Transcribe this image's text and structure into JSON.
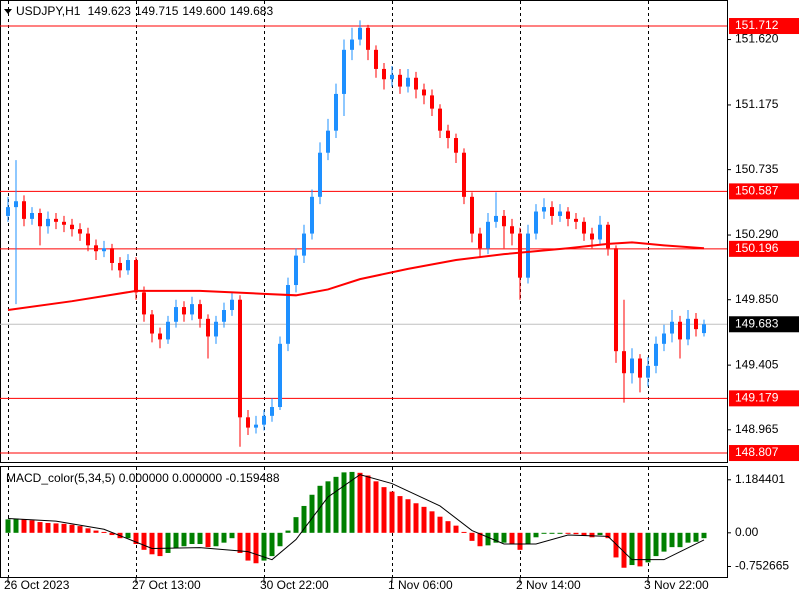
{
  "chart_data": [
    {
      "type": "candlestick",
      "title": "USDJPY,H1",
      "last_bar_labels": [
        "149.623",
        "149.715",
        "149.600",
        "149.683"
      ],
      "open": [
        150.42,
        150.48,
        150.52,
        150.4,
        150.44,
        150.35,
        150.4,
        150.38,
        150.36,
        150.33,
        150.3,
        150.22,
        150.18,
        150.2,
        150.1,
        150.05,
        150.12,
        149.9,
        149.75,
        149.62,
        149.58,
        149.7,
        149.8,
        149.75,
        149.82,
        149.72,
        149.6,
        149.7,
        149.78,
        149.85,
        149.05,
        148.98,
        149.0,
        149.06,
        149.12,
        149.55,
        149.95,
        150.15,
        150.3,
        150.55,
        150.85,
        151.0,
        151.25,
        151.55,
        151.62,
        151.7,
        151.55,
        151.42,
        151.35,
        151.38,
        151.3,
        151.36,
        151.28,
        151.24,
        151.15,
        151.0,
        150.95,
        150.85,
        150.55,
        150.3,
        150.2,
        150.38,
        150.42,
        150.35,
        150.3,
        150.0,
        150.3,
        150.45,
        150.48,
        150.42,
        150.45,
        150.4,
        150.38,
        150.3,
        150.26,
        150.36,
        150.2,
        149.5,
        149.35,
        149.45,
        149.32,
        149.4,
        149.55,
        149.62,
        149.7,
        149.58,
        149.72,
        149.623
      ],
      "high": [
        150.55,
        150.8,
        150.56,
        150.48,
        150.47,
        150.45,
        150.44,
        150.42,
        150.4,
        150.37,
        150.34,
        150.26,
        150.25,
        150.23,
        150.14,
        150.16,
        150.14,
        149.94,
        149.78,
        149.66,
        149.74,
        149.85,
        149.84,
        149.87,
        149.85,
        149.75,
        149.74,
        149.83,
        149.9,
        149.88,
        149.1,
        149.06,
        149.1,
        149.18,
        149.6,
        150.0,
        150.2,
        150.36,
        150.6,
        150.92,
        151.08,
        151.32,
        151.62,
        151.7,
        151.75,
        151.72,
        151.58,
        151.46,
        151.44,
        151.42,
        151.42,
        151.4,
        151.32,
        151.28,
        151.18,
        151.04,
        150.98,
        150.88,
        150.58,
        150.34,
        150.44,
        150.58,
        150.46,
        150.4,
        150.34,
        150.36,
        150.5,
        150.54,
        150.52,
        150.5,
        150.48,
        150.44,
        150.41,
        150.34,
        150.42,
        150.38,
        150.22,
        149.85,
        149.52,
        149.48,
        149.46,
        149.6,
        149.68,
        149.78,
        149.74,
        149.78,
        149.76,
        149.715
      ],
      "low": [
        150.38,
        149.82,
        150.35,
        150.36,
        150.22,
        150.3,
        150.33,
        150.31,
        150.28,
        150.25,
        150.18,
        150.12,
        150.14,
        150.05,
        150.0,
        150.02,
        149.85,
        149.7,
        149.56,
        149.52,
        149.55,
        149.66,
        149.7,
        149.71,
        149.66,
        149.45,
        149.55,
        149.66,
        149.74,
        148.85,
        148.93,
        148.94,
        148.96,
        149.02,
        149.1,
        149.5,
        149.9,
        150.1,
        150.26,
        150.5,
        150.8,
        150.95,
        151.1,
        151.48,
        151.58,
        151.48,
        151.36,
        151.28,
        151.3,
        151.25,
        151.26,
        151.22,
        151.18,
        151.1,
        150.95,
        150.88,
        150.78,
        150.5,
        150.24,
        150.14,
        150.16,
        150.34,
        150.2,
        150.22,
        149.85,
        149.96,
        150.26,
        150.4,
        150.36,
        150.38,
        150.35,
        150.33,
        150.25,
        150.2,
        150.22,
        150.15,
        149.42,
        149.15,
        149.28,
        149.22,
        149.26,
        149.35,
        149.5,
        149.56,
        149.45,
        149.54,
        149.6,
        149.6
      ],
      "close": [
        150.48,
        150.52,
        150.4,
        150.44,
        150.35,
        150.4,
        150.38,
        150.36,
        150.33,
        150.3,
        150.22,
        150.18,
        150.2,
        150.1,
        150.05,
        150.12,
        149.9,
        149.75,
        149.62,
        149.58,
        149.7,
        149.8,
        149.75,
        149.82,
        149.72,
        149.6,
        149.7,
        149.78,
        149.85,
        149.05,
        148.98,
        149.0,
        149.06,
        149.12,
        149.55,
        149.95,
        150.15,
        150.3,
        150.55,
        150.85,
        151.0,
        151.25,
        151.55,
        151.62,
        151.7,
        151.55,
        151.42,
        151.35,
        151.38,
        151.3,
        151.36,
        151.28,
        151.24,
        151.15,
        151.0,
        150.95,
        150.85,
        150.55,
        150.3,
        150.2,
        150.38,
        150.42,
        150.35,
        150.3,
        150.0,
        150.3,
        150.45,
        150.48,
        150.42,
        150.45,
        150.4,
        150.38,
        150.3,
        150.26,
        150.36,
        150.2,
        149.5,
        149.35,
        149.45,
        149.32,
        149.4,
        149.55,
        149.62,
        149.7,
        149.58,
        149.72,
        149.65,
        149.683
      ],
      "up_color": "#1e90ff",
      "down_color": "#ff0000",
      "ma": {
        "x": [
          0,
          8,
          16,
          24,
          32,
          36,
          40,
          44,
          50,
          56,
          62,
          70,
          75,
          78,
          82,
          87
        ],
        "values": [
          149.78,
          149.84,
          149.91,
          149.91,
          149.89,
          149.88,
          149.92,
          149.99,
          150.06,
          150.12,
          150.16,
          150.2,
          150.23,
          150.24,
          150.22,
          150.2
        ],
        "color": "#ff0000"
      },
      "levels": {
        "values": [
          151.712,
          150.587,
          150.196,
          149.179,
          148.807
        ],
        "color": "#ff0000"
      },
      "price_line_color": "#c0c0c0",
      "ylim": [
        148.746,
        151.889
      ],
      "yticks": [
        {
          "value": 151.62,
          "label": "151.620"
        },
        151.175,
        150.735,
        {
          "value": 150.29,
          "label": "150.290"
        },
        {
          "value": 149.85,
          "label": "149.850"
        },
        149.405,
        148.965
      ],
      "xticks": [
        {
          "value": 0,
          "label": "26 Oct 2023"
        },
        {
          "value": 16,
          "label": "27 Oct 13:00"
        },
        {
          "value": 32,
          "label": "30 Oct 22:00"
        },
        {
          "value": 48,
          "label": "1 Nov 06:00"
        },
        {
          "value": 64,
          "label": "2 Nov 14:00"
        },
        {
          "value": 80,
          "label": "3 Nov 22:00"
        }
      ],
      "grid": true
    },
    {
      "type": "macd",
      "title": "MACD_color(5,34,5) 0.000000 0.000000 -0.159488",
      "values": [
        0.3,
        0.32,
        0.3,
        0.28,
        0.24,
        0.22,
        0.21,
        0.2,
        0.18,
        0.15,
        0.1,
        0.05,
        0.02,
        -0.05,
        -0.12,
        -0.12,
        -0.25,
        -0.38,
        -0.48,
        -0.52,
        -0.45,
        -0.35,
        -0.3,
        -0.25,
        -0.25,
        -0.32,
        -0.3,
        -0.22,
        -0.12,
        -0.45,
        -0.62,
        -0.68,
        -0.62,
        -0.52,
        -0.3,
        0.05,
        0.35,
        0.6,
        0.85,
        1.05,
        1.15,
        1.25,
        1.35,
        1.36,
        1.34,
        1.28,
        1.15,
        1.02,
        0.92,
        0.82,
        0.75,
        0.66,
        0.58,
        0.48,
        0.36,
        0.26,
        0.16,
        0.02,
        -0.18,
        -0.3,
        -0.28,
        -0.22,
        -0.22,
        -0.24,
        -0.38,
        -0.25,
        -0.1,
        -0.02,
        -0.02,
        -0.01,
        -0.02,
        -0.03,
        -0.07,
        -0.1,
        -0.05,
        -0.12,
        -0.55,
        -0.78,
        -0.72,
        -0.75,
        -0.66,
        -0.52,
        -0.42,
        -0.32,
        -0.32,
        -0.22,
        -0.2,
        -0.12
      ],
      "up_color": "#008000",
      "down_color": "#ff0000",
      "signal": {
        "x": [
          0,
          6,
          12,
          18,
          24,
          30,
          33,
          36,
          40,
          44,
          48,
          54,
          58,
          62,
          66,
          70,
          75,
          78,
          82,
          87
        ],
        "values": [
          0.32,
          0.26,
          0.08,
          -0.35,
          -0.33,
          -0.42,
          -0.6,
          -0.15,
          0.8,
          1.3,
          1.1,
          0.6,
          0.05,
          -0.25,
          -0.25,
          -0.05,
          -0.08,
          -0.6,
          -0.6,
          -0.159488
        ],
        "color": "#000000"
      },
      "ylim": [
        -0.987,
        1.47
      ],
      "yticks": [
        1.184401,
        {
          "value": 0,
          "label": "0.00"
        },
        -0.752665
      ]
    }
  ]
}
